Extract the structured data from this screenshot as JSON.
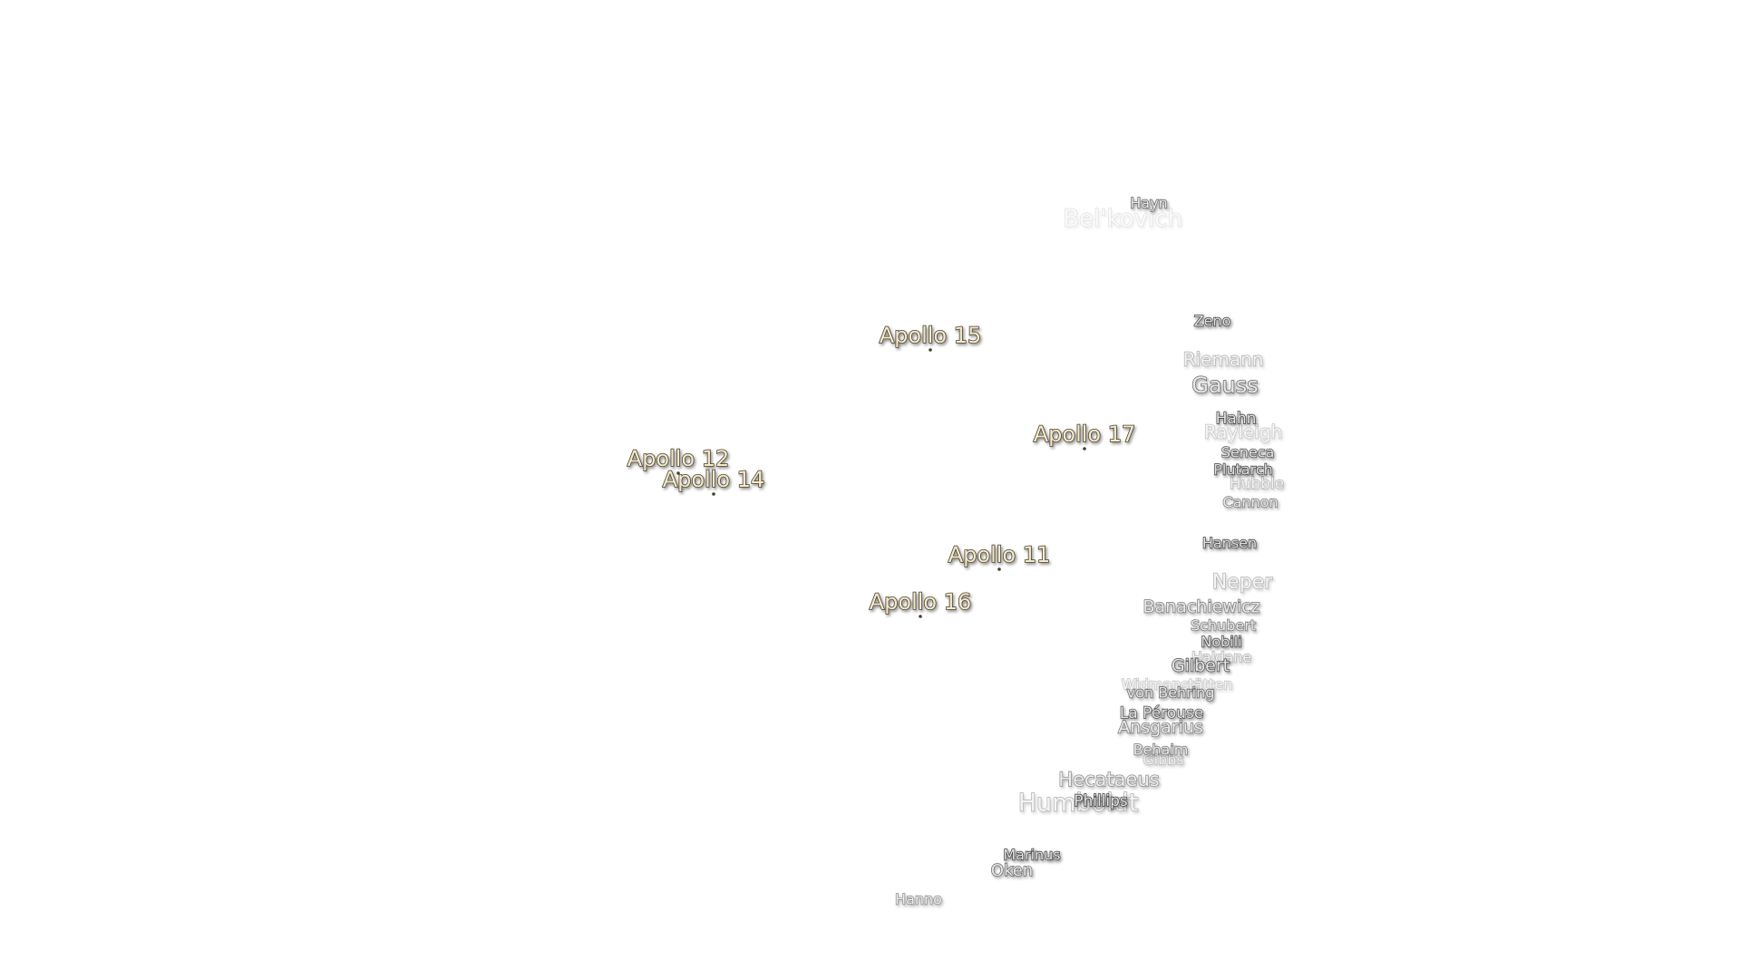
{
  "labels": {
    "apollo": [
      "Apollo 15",
      "Apollo 17",
      "Apollo 12",
      "Apollo 14",
      "Apollo 11",
      "Apollo 16"
    ],
    "craters": [
      "Hayn",
      "Bel'kovich",
      "Zeno",
      "Riemann",
      "Gauss",
      "Hahn",
      "Rayleigh",
      "Seneca",
      "Plutarch",
      "Hubble",
      "Cannon",
      "Hansen",
      "Neper",
      "Banachiewicz",
      "Schubert",
      "Nobili",
      "Haldane",
      "Gilbert",
      "Widmanstätten",
      "von Behring",
      "La Pérouse",
      "Ansgarius",
      "Behaim",
      "Gibbs",
      "Hecataeus",
      "Humboldt",
      "Phillips",
      "Marinus",
      "Oken",
      "Hanno"
    ]
  }
}
